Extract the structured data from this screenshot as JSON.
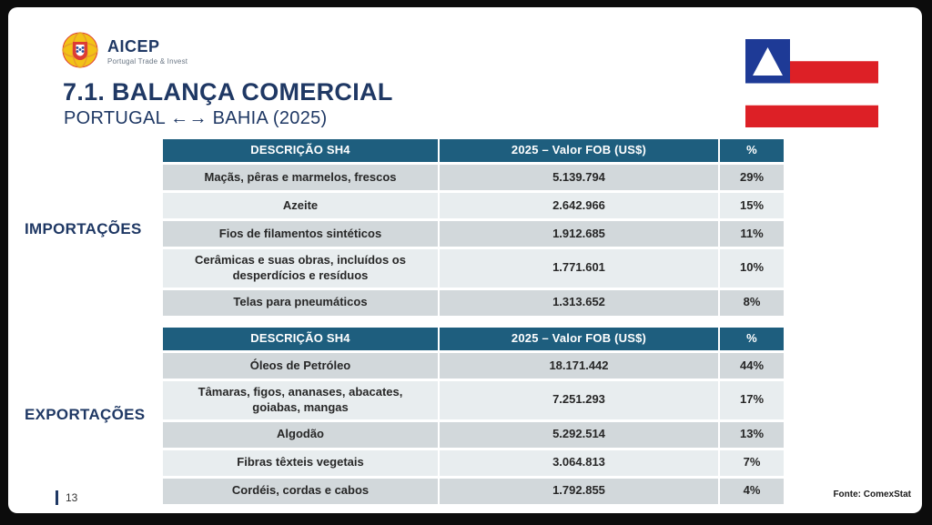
{
  "logo": {
    "brand": "AICEP",
    "tagline": "Portugal Trade & Invest"
  },
  "header": {
    "title": "7.1. BALANÇA COMERCIAL",
    "subtitle": "PORTUGAL ←→ BAHIA (2025)"
  },
  "sections": [
    {
      "label": "IMPORTAÇÕES",
      "table": {
        "headers": [
          "DESCRIÇÃO SH4",
          "2025 – Valor FOB (US$)",
          "%"
        ],
        "rows": [
          [
            "Maçãs, pêras e marmelos, frescos",
            "5.139.794",
            "29%"
          ],
          [
            "Azeite",
            "2.642.966",
            "15%"
          ],
          [
            "Fios de filamentos sintéticos",
            "1.912.685",
            "11%"
          ],
          [
            "Cerâmicas e suas obras, incluídos os desperdícios e resíduos",
            "1.771.601",
            "10%"
          ],
          [
            "Telas para pneumáticos",
            "1.313.652",
            "8%"
          ]
        ]
      }
    },
    {
      "label": "EXPORTAÇÕES",
      "table": {
        "headers": [
          "DESCRIÇÃO SH4",
          "2025 – Valor FOB (US$)",
          "%"
        ],
        "rows": [
          [
            "Óleos de Petróleo",
            "18.171.442",
            "44%"
          ],
          [
            "Tâmaras, figos, ananases, abacates, goiabas, mangas",
            "7.251.293",
            "17%"
          ],
          [
            "Algodão",
            "5.292.514",
            "13%"
          ],
          [
            "Fibras têxteis vegetais",
            "3.064.813",
            "7%"
          ],
          [
            "Cordéis, cordas e cabos",
            "1.792.855",
            "4%"
          ]
        ]
      }
    }
  ],
  "footer": {
    "page_number": "13",
    "source": "Fonte: ComexStat"
  },
  "colors": {
    "table_header_bg": "#1e5e7e",
    "row_dark": "#d2d8db",
    "row_light": "#e8edef",
    "accent_navy": "#1f3864",
    "flag_blue": "#1e3a96",
    "flag_red": "#dd2026",
    "logo_yellow": "#f2c217",
    "logo_red": "#dd3c33"
  }
}
